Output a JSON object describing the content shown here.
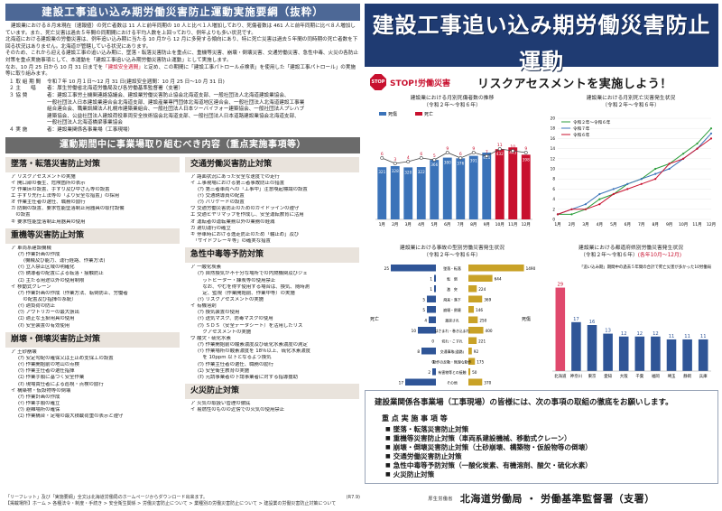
{
  "left": {
    "banner": "建設工事追い込み期労働災害防止運動実施要綱（抜粋）",
    "intro": [
      "建設業における８月末現在（速報値）の死亡者数は 11 人と前年同期の 10 人と比べ１人増加しており、死傷者数は 461 人と前年",
      "同期に比べ８人増加しています。また、死亡災害は過去５年間の同期間における平均人数を上回っており、例年よりも多い状況です。",
      "北海道における建設業の労働災害は、例年追い込み期に当たる 10 月から 12 月に多発する傾向にあり、特に死亡災害は過去５",
      "年間の同時期の死亡者数を下回る状況はありません。北海道が管轄している状況にあります。",
      "そのため、これから迎える建設工事の追い込み期に、墜落・転落災害防止を重点に、重機等災害、崩壊・倒壊災害、交通労働災",
      "害、急性中毒、火災の各防止対策を重点実施事項として、本運動を「建設工事追い込み期労働災害防止運動」として実施します。",
      "なお、10 月 25 日から 10 月 31 日までを",
      "「建設安全週間」",
      "と定め、この期間に「建設工事パトロール点検表」を使用した「建設",
      "工事パトロール」の実施等に取り組みます。"
    ],
    "org": [
      {
        "k": "１ 取 組 期 間",
        "v": [
          "令和７年 10 月１日～12 月 31 日(建設安全週間：10 月 25 日～10 月 31 日)"
        ]
      },
      {
        "k": "２ 主　　唱",
        "v": [
          "者：厚生労働省北海道労働局及び各労働基準監督署（支署）"
        ]
      },
      {
        "k": "３ 協 賛",
        "v": [
          "者：建設工事労土機関連絡協議会、建設業労働災害防止協会北海道支部、一般社団法人北海道建設業協会、",
          "一般社団法人日本建設業連合会北海道支部、建設産業専門団体北海道地区連合会、一般社団法人北海道建設工事業",
          "組合連合会、職業訓練法人札幌市建築業組合、一般社団法人日本ツーバイフォー建築協会、一般社団法人プレハブ",
          "建築協会、公益社団法人建設荷役車両安全技術協会北海道支部、一般社団法人日本道路建設業協会北海道支部、",
          "一般社団法人北海道橋梁事業協会"
        ]
      },
      {
        "k": "４ 実 施",
        "v": [
          "者：建設業関係各事業場（工事現場）"
        ]
      }
    ],
    "mid_banner": "運動期間中に事業場取り組むべき内容（重点実施事項等）",
    "left_col": [
      {
        "title": "墜落・転落災害防止対策",
        "items": [
          {
            "t": "ア リスクアセスメントの実施",
            "l": 0
          },
          {
            "t": "イ 開口部の養生、危険箇所の表示",
            "l": 0
          },
          {
            "t": "ウ 作業床の設置、手すり及び中さん等の設置",
            "l": 0
          },
          {
            "t": "エ 手すり先行工法等の「より安全な措置」の採用",
            "l": 0
          },
          {
            "t": "オ 作業主任者の選任、職務の励行",
            "l": 0
          },
          {
            "t": "カ 防網の設置、要求性能墜落制止用器具の取付設備",
            "l": 0
          },
          {
            "t": "　の設置",
            "l": 0
          },
          {
            "t": "キ 要求性能墜落制止用器具の使用",
            "l": 0
          }
        ]
      },
      {
        "title": "重機等災害防止対策",
        "items": [
          {
            "t": "ア 車両系建設機械",
            "l": 0
          },
          {
            "t": "(ｱ) 作業計画の作成",
            "l": 1
          },
          {
            "t": "(機械及び能力、運行経路、作業方法)",
            "l": 2
          },
          {
            "t": "(ｲ) 立入禁止区域の明確化",
            "l": 1
          },
          {
            "t": "(ｳ) 誘導者の配置による転落・接触防止",
            "l": 1
          },
          {
            "t": "(ｴ) 主たる用途以外の使用制限",
            "l": 1
          },
          {
            "t": "イ 移動式クレーン",
            "l": 0
          },
          {
            "t": "(ｱ) 作業計画の作成（作業方法、転倒防止、労働者",
            "l": 1
          },
          {
            "t": "　の配置及び指揮の系統）",
            "l": 1
          },
          {
            "t": "(ｲ) 適負荷の防止",
            "l": 1
          },
          {
            "t": "(ｳ) アウトリガーの最大張出",
            "l": 1
          },
          {
            "t": "(ｴ) 適正な玉掛用具の使用",
            "l": 1
          },
          {
            "t": "(ｵ) 安全装置の有効使用",
            "l": 1
          }
        ]
      },
      {
        "title": "崩壊・倒壊災害防止対策",
        "items": [
          {
            "t": "ア 土砂崩壊",
            "l": 0
          },
          {
            "t": "(ｱ) 安定勾配の確保又は土止め支保工の設置",
            "l": 1
          },
          {
            "t": "(ｲ) 作業開始前の地山の点検",
            "l": 1
          },
          {
            "t": "(ｳ) 作業主任者の選任指揮",
            "l": 1
          },
          {
            "t": "(ｴ) 作業手順に基づく安全作業",
            "l": 1
          },
          {
            "t": "(ｵ) 現場責任者による巡視・点検の励行",
            "l": 1
          },
          {
            "t": "イ 構築物・仮設物等の倒壊",
            "l": 0
          },
          {
            "t": "(ｱ) 作業計画の作成",
            "l": 1
          },
          {
            "t": "(ｲ) 作業手順の確立",
            "l": 1
          },
          {
            "t": "(ｳ) 避難場所の確保",
            "l": 1
          },
          {
            "t": "(ｴ) 作業構台・足場の最大積載荷重の表示と遵守",
            "l": 1
          }
        ]
      }
    ],
    "right_col": [
      {
        "title": "交通労働災害防止対策",
        "items": [
          {
            "t": "ア 路面状況にあった安全な速度での走行",
            "l": 0
          },
          {
            "t": "イ 工事現場における第三者事故防止の措置",
            "l": 0
          },
          {
            "t": "(ｱ) 第三者車両への「工事中」注意喚起標識の設置",
            "l": 1
          },
          {
            "t": "(ｲ) 交通誘導員の配置",
            "l": 1
          },
          {
            "t": "(ｳ) バリケードの設置",
            "l": 1
          },
          {
            "t": "ウ 交通労働災害防止のためのガイドラインの遵守",
            "l": 0
          },
          {
            "t": "エ 交通ヒヤリマップを作成し、安全運転教育に活用",
            "l": 0
          },
          {
            "t": "オ 運転者の運転業務以外の業務の軽減",
            "l": 0
          },
          {
            "t": "カ 適切運行の確立",
            "l": 0
          },
          {
            "t": "キ 停車時における逸走防止のため「輪止め」及び",
            "l": 0
          },
          {
            "t": "　「サイドブレーキ等」の確実な措置",
            "l": 0
          }
        ]
      },
      {
        "title": "急性中毒等予防対策",
        "items": [
          {
            "t": "ア 一酸化炭素",
            "l": 0
          },
          {
            "t": "(ｱ) 自然換気が不十分な場所での内燃機関及びジェ",
            "l": 1
          },
          {
            "t": "　ットヒーター・練炭等の使用禁止",
            "l": 1
          },
          {
            "t": "　なお、やむを得ず使用する場合は、換気、随時測",
            "l": 1
          },
          {
            "t": "　定、監視（作業開始前、作業中等）の実施",
            "l": 1
          },
          {
            "t": "(ｲ) リスクアセスメントの実施",
            "l": 1
          },
          {
            "t": "イ 有機溶剤",
            "l": 0
          },
          {
            "t": "(ｱ) 換気装置の使用",
            "l": 1
          },
          {
            "t": "(ｲ) 送気マスク、防毒マスクの使用",
            "l": 1
          },
          {
            "t": "(ｳ) ＳＤＳ（安全データシート）を活用したリス",
            "l": 1
          },
          {
            "t": "　クアセスメントの実施",
            "l": 1
          },
          {
            "t": "ウ 酸欠・硫化水素",
            "l": 0
          },
          {
            "t": "(ｱ) 作業開始前の酸素濃度及び硫化水素濃度の測定",
            "l": 1
          },
          {
            "t": "(ｲ) 作業場所の酸素濃度を 18％以上、硫化水素濃度",
            "l": 1
          },
          {
            "t": "　を 10ppm 以下となるよう換気",
            "l": 1
          },
          {
            "t": "(ｳ) 作業主任者の選任、職務の励行",
            "l": 1
          },
          {
            "t": "(ｴ) 安全衛生教育の実施",
            "l": 1
          },
          {
            "t": "(ｵ) 元請事業者の下請事業者に対する指導援助",
            "l": 1
          }
        ]
      },
      {
        "title": "火災防止対策",
        "items": [
          {
            "t": "ア 火気の取扱い管理の徹底",
            "l": 0
          },
          {
            "t": "イ 易燃性のものの近傍での火気の使用禁止",
            "l": 0
          }
        ]
      }
    ],
    "footnote": "「リーフレット」及び「実施要綱」全文は北海道労働局のホームページからダウンロード出来ます。",
    "footnote2": "【掲載場所】ホーム > 各種法令・制度・手続き > 安全衛生関係 > 労働災害防止について > 業種別の労働災害防止について > 建設業の労働災害防止対策について",
    "rev": "(R7.9)"
  },
  "right": {
    "hero_title": "建設工事追い込み期労働災害防止運動",
    "hero_period": "令和７年 10 月１日～12 月 31 日",
    "hero_week": "(建設安全週間 10 月 25 日～10 月 31 日)",
    "stop_icon_text": "STOP",
    "stop_label": "STOP!労働災害",
    "risk_text": "リスクアセスメントを実施しよう！",
    "lead": "建設業関係各事業場（工事現場）の皆様には、次の事項の取組の徹底をお願いします。",
    "priority_head": "重 点 実 施 事 項 等",
    "priority_items": [
      "墜落・転落災害防止対策",
      "重機等災害防止対策（車両系建設機械、移動式クレーン）",
      "崩壊・倒壊災害防止対策（土砂崩壊、構築物・仮設物等の倒壊）",
      "交通労働災害防止対策",
      "急性中毒等予防対策（一酸化炭素、有機溶剤、酸欠・硫化水素）",
      "火災防止対策"
    ],
    "agency": "北海道労働局 ・ 労働基準監督署（支署）",
    "logo_text": "厚生労働省"
  },
  "chart_data": [
    {
      "type": "bar",
      "title": "建設業における月別死傷者数の推移",
      "subtitle": "（令和２年～令和６年）",
      "categories": [
        "1月",
        "2月",
        "3月",
        "4月",
        "5月",
        "6月",
        "7月",
        "8月",
        "9月",
        "10月",
        "11月",
        "12月"
      ],
      "series": [
        {
          "name": "死傷",
          "values": [
            321,
            328,
            320,
            322,
            366,
            380,
            376,
            391,
            411,
            432,
            443,
            398
          ],
          "color": "#3b73b9"
        },
        {
          "name": "死亡",
          "values": [
            6,
            3,
            4,
            6,
            5,
            9,
            6,
            9,
            7,
            11,
            10,
            9
          ],
          "color": "#c8102e"
        }
      ],
      "highlight_from": 9
    },
    {
      "type": "line",
      "title": "建設業における月別死亡災害発生状況",
      "subtitle": "（令和２年～令和６年）",
      "x": [
        "1月",
        "2月",
        "3月",
        "4月",
        "5月",
        "6月",
        "7月",
        "8月",
        "9月",
        "10月",
        "11月",
        "12月"
      ],
      "series": [
        {
          "name": "令和２年～令和６年",
          "values": [
            1,
            1,
            2,
            4,
            5,
            7,
            8,
            10,
            11,
            13,
            15,
            18
          ],
          "color": "#2c9e3c"
        },
        {
          "name": "令和７年",
          "values": [
            1,
            2,
            3,
            5,
            6,
            7,
            8,
            9,
            10,
            12,
            14,
            17
          ],
          "color": "#3b73b9"
        },
        {
          "name": "令和６年",
          "values": [
            1,
            2,
            2,
            3,
            5,
            6,
            7,
            8,
            11,
            12,
            14,
            16
          ],
          "color": "#c8102e"
        }
      ]
    },
    {
      "type": "bar",
      "title": "建設業における事故の型別労働災害発生状況",
      "subtitle": "（令和２年～令和６年）",
      "categories": [
        "墜落・転落",
        "転　倒",
        "激　突",
        "飛来・落下",
        "崩壊・倒壊",
        "激突され",
        "はさまれ・巻き込まれ",
        "切れ・こすれ",
        "交通事故(道路)",
        "動作の反動・無理な動作",
        "有害物等との接触",
        "その他"
      ],
      "left_label": "死亡",
      "right_label": "死傷",
      "series": [
        {
          "name": "死亡",
          "values": [
            25,
            1,
            1,
            5,
            5,
            4,
            10,
            0,
            8,
            0,
            2,
            17
          ],
          "color": "#2f5597"
        },
        {
          "name": "死傷",
          "values": [
            1490,
            644,
            224,
            369,
            146,
            250,
            400,
            221,
            92,
            175,
            50,
            370
          ],
          "color": "#c9a227"
        }
      ]
    },
    {
      "type": "bar",
      "title": "建設業における都道府県別労働災害発生状況",
      "subtitle": "（令和２年～令和６年）",
      "subtitle_red": "(各年10月～12月)",
      "annotation": "「追い込み期」期間中の過去５年間の合計で死亡災害が多かった10労働局",
      "categories": [
        "北海道",
        "神奈川",
        "東京",
        "愛知",
        "大阪",
        "千葉",
        "福岡",
        "埼玉",
        "静岡",
        "兵庫"
      ],
      "values": [
        29,
        17,
        16,
        13,
        12,
        12,
        12,
        11,
        11,
        11
      ],
      "colors": [
        "#e0496d",
        "#2f5597",
        "#2f5597",
        "#2f5597",
        "#2f5597",
        "#2f5597",
        "#2f5597",
        "#2f5597",
        "#2f5597",
        "#2f5597"
      ],
      "ylim": [
        0,
        32
      ]
    }
  ]
}
